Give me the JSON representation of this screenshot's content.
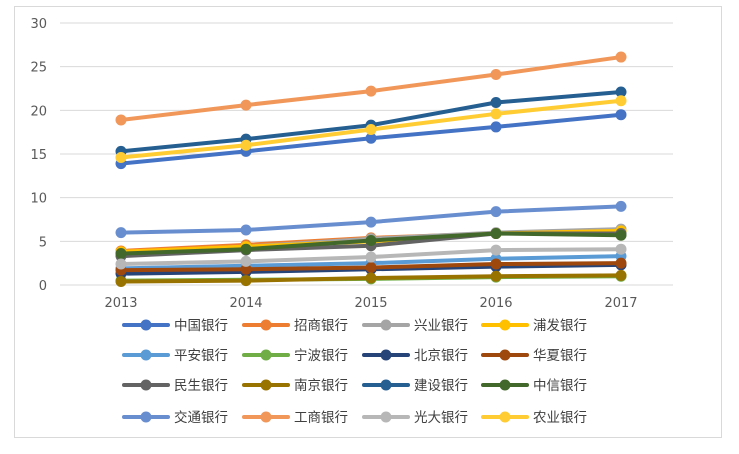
{
  "chart_data": {
    "type": "line",
    "title": "",
    "xlabel": "",
    "ylabel": "",
    "x": [
      "2013",
      "2014",
      "2015",
      "2016",
      "2017"
    ],
    "ylim": [
      0,
      30
    ],
    "yticks": [
      "0",
      "5",
      "10",
      "15",
      "20",
      "25",
      "30"
    ],
    "grid": true,
    "legend": "bottom",
    "series": [
      {
        "name": "中国银行",
        "color": "#4472c4",
        "values": [
          13.9,
          15.3,
          16.8,
          18.1,
          19.5
        ]
      },
      {
        "name": "招商银行",
        "color": "#ed7d31",
        "values": [
          3.9,
          4.6,
          5.4,
          5.9,
          6.2
        ]
      },
      {
        "name": "兴业银行",
        "color": "#a5a5a5",
        "values": [
          3.7,
          4.4,
          5.3,
          6.0,
          6.4
        ]
      },
      {
        "name": "浦发银行",
        "color": "#ffc000",
        "values": [
          3.8,
          4.4,
          5.0,
          5.9,
          6.2
        ]
      },
      {
        "name": "平安银行",
        "color": "#5b9bd5",
        "values": [
          1.9,
          2.2,
          2.5,
          3.0,
          3.3
        ]
      },
      {
        "name": "宁波银行",
        "color": "#70ad47",
        "values": [
          0.5,
          0.6,
          0.7,
          0.9,
          1.0
        ]
      },
      {
        "name": "北京银行",
        "color": "#264478",
        "values": [
          1.3,
          1.5,
          1.8,
          2.1,
          2.3
        ]
      },
      {
        "name": "华夏银行",
        "color": "#9e480e",
        "values": [
          1.7,
          1.8,
          2.0,
          2.4,
          2.5
        ]
      },
      {
        "name": "民生银行",
        "color": "#636363",
        "values": [
          3.3,
          4.0,
          4.5,
          5.9,
          5.9
        ]
      },
      {
        "name": "南京银行",
        "color": "#997300",
        "values": [
          0.4,
          0.5,
          0.8,
          1.0,
          1.1
        ]
      },
      {
        "name": "建设银行",
        "color": "#255e91",
        "values": [
          15.3,
          16.7,
          18.3,
          20.9,
          22.1
        ]
      },
      {
        "name": "中信银行",
        "color": "#43682b",
        "values": [
          3.6,
          4.1,
          5.1,
          5.9,
          5.7
        ]
      },
      {
        "name": "交通银行",
        "color": "#698ed0",
        "values": [
          6.0,
          6.3,
          7.2,
          8.4,
          9.0
        ]
      },
      {
        "name": "工商银行",
        "color": "#f1975a",
        "values": [
          18.9,
          20.6,
          22.2,
          24.1,
          26.1
        ]
      },
      {
        "name": "光大银行",
        "color": "#b7b7b7",
        "values": [
          2.4,
          2.7,
          3.2,
          4.0,
          4.1
        ]
      },
      {
        "name": "农业银行",
        "color": "#ffcd33",
        "values": [
          14.6,
          16.0,
          17.8,
          19.6,
          21.1
        ]
      }
    ]
  }
}
